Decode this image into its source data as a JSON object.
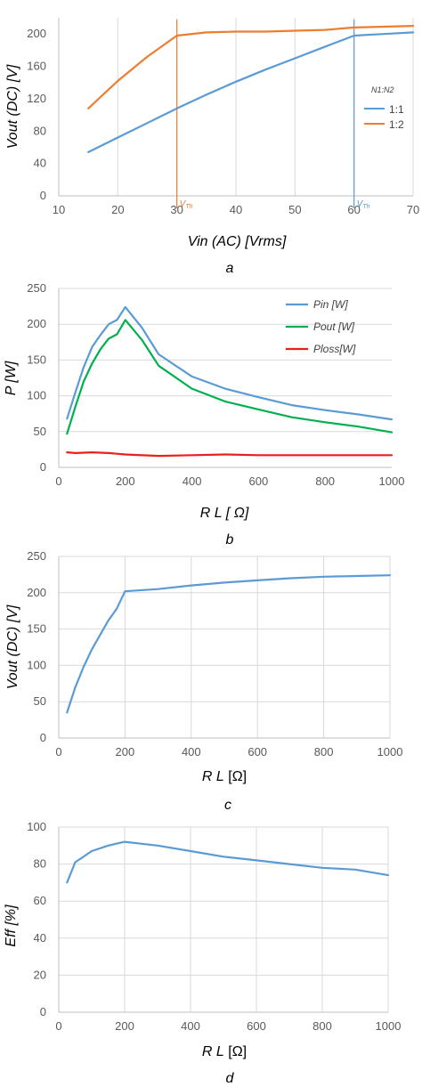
{
  "colors": {
    "blue": "#5b9bd5",
    "orange": "#ed7d31",
    "green": "#00b050",
    "red": "#e8211a",
    "grid": "#d9d9d9",
    "axis": "#bfbfbf"
  },
  "chart_data": [
    {
      "panel": "a",
      "type": "line",
      "xlabel": "Vin (AC) [Vrms]",
      "ylabel": "Vout (DC) [V]",
      "xlim": [
        10,
        70
      ],
      "ylim": [
        0,
        220
      ],
      "xticks": [
        10,
        20,
        30,
        40,
        50,
        60,
        70
      ],
      "yticks": [
        0,
        40,
        80,
        120,
        160,
        200
      ],
      "grid": "vertical",
      "legend_title": "N1:N2",
      "legend_position": "right",
      "series": [
        {
          "name": "1:1",
          "color": "#5b9bd5",
          "x": [
            15,
            20,
            25,
            30,
            35,
            40,
            45,
            50,
            55,
            60,
            65,
            70
          ],
          "y": [
            54,
            72,
            90,
            108,
            125,
            141,
            156,
            170,
            184,
            198,
            200,
            202
          ]
        },
        {
          "name": "1:2",
          "color": "#ed7d31",
          "x": [
            15,
            20,
            25,
            30,
            35,
            40,
            45,
            50,
            55,
            60,
            65,
            70
          ],
          "y": [
            108,
            142,
            172,
            198,
            202,
            203,
            203,
            204,
            205,
            208,
            209,
            210
          ]
        }
      ],
      "annotations": [
        {
          "x": 30,
          "color": "#ed7d31",
          "label_main": "V",
          "label_sub": "Th"
        },
        {
          "x": 60,
          "color": "#5b9bd5",
          "label_main": "V",
          "label_sub": "Th"
        }
      ]
    },
    {
      "panel": "b",
      "type": "line",
      "xlabel": "R L  [ Ω]",
      "ylabel": "P [W]",
      "xlim": [
        0,
        1000
      ],
      "ylim": [
        0,
        250
      ],
      "xticks": [
        0,
        200,
        400,
        600,
        800,
        1000
      ],
      "yticks": [
        0,
        50,
        100,
        150,
        200,
        250
      ],
      "grid": "horizontal",
      "legend_position": "top-right",
      "series": [
        {
          "name": "Pin [W]",
          "color": "#5b9bd5",
          "x": [
            25,
            50,
            75,
            100,
            125,
            150,
            175,
            200,
            250,
            300,
            400,
            500,
            600,
            700,
            800,
            900,
            1000
          ],
          "y": [
            68,
            105,
            140,
            168,
            185,
            200,
            206,
            224,
            195,
            158,
            127,
            110,
            98,
            87,
            80,
            74,
            67
          ]
        },
        {
          "name": "Pout [W]",
          "color": "#00b050",
          "x": [
            25,
            50,
            75,
            100,
            125,
            150,
            175,
            200,
            250,
            300,
            400,
            500,
            600,
            700,
            800,
            900,
            1000
          ],
          "y": [
            47,
            85,
            120,
            145,
            165,
            180,
            186,
            206,
            178,
            142,
            110,
            92,
            81,
            70,
            63,
            57,
            49
          ]
        },
        {
          "name": "Ploss[W]",
          "color": "#e8211a",
          "x": [
            25,
            50,
            100,
            150,
            200,
            300,
            400,
            500,
            600,
            700,
            800,
            900,
            1000
          ],
          "y": [
            21,
            20,
            21,
            20,
            18,
            16,
            17,
            18,
            17,
            17,
            17,
            17,
            17
          ]
        }
      ]
    },
    {
      "panel": "c",
      "type": "line",
      "xlabel": "R L  [Ω]",
      "ylabel": "Vout (DC) [V]",
      "xlim": [
        0,
        1000
      ],
      "ylim": [
        0,
        250
      ],
      "xticks": [
        0,
        200,
        400,
        600,
        800,
        1000
      ],
      "yticks": [
        0,
        50,
        100,
        150,
        200,
        250
      ],
      "grid": "both",
      "series": [
        {
          "name": "",
          "color": "#5b9bd5",
          "x": [
            25,
            50,
            75,
            100,
            125,
            150,
            175,
            200,
            300,
            400,
            500,
            600,
            700,
            800,
            900,
            1000
          ],
          "y": [
            35,
            70,
            98,
            122,
            142,
            162,
            178,
            202,
            205,
            210,
            214,
            217,
            220,
            222,
            223,
            224
          ]
        }
      ]
    },
    {
      "panel": "d",
      "type": "line",
      "xlabel": "R L  [Ω]",
      "ylabel": "Eff [%]",
      "xlim": [
        0,
        1000
      ],
      "ylim": [
        0,
        100
      ],
      "xticks": [
        0,
        200,
        400,
        600,
        800,
        1000
      ],
      "yticks": [
        0,
        20,
        40,
        60,
        80,
        100
      ],
      "grid": "both",
      "series": [
        {
          "name": "",
          "color": "#5b9bd5",
          "x": [
            25,
            50,
            75,
            100,
            150,
            200,
            300,
            400,
            500,
            600,
            700,
            800,
            900,
            1000
          ],
          "y": [
            70,
            81,
            84,
            87,
            90,
            92,
            90,
            87,
            84,
            82,
            80,
            78,
            77,
            74
          ]
        }
      ]
    }
  ]
}
